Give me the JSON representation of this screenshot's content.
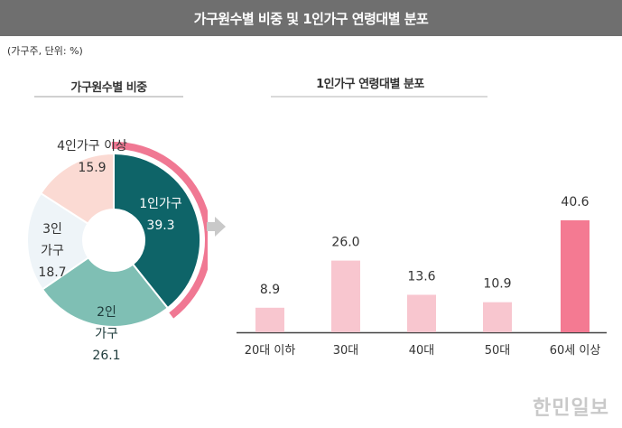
{
  "header": {
    "title": "가구원수별 비중 및 1인가구 연령대별 분포"
  },
  "unit_note": "(가구주, 단위: %)",
  "left_panel": {
    "title": "가구원수별 비중"
  },
  "right_panel": {
    "title": "1인가구 연령대별 분포"
  },
  "watermark": "한민일보",
  "colors": {
    "dark_teal": "#0e6468",
    "mid_teal": "#7fbfb4",
    "light_blue": "#eef4f8",
    "light_pink": "#fbdad3",
    "pink_accent": "#f07893",
    "bar_light": "#f8c6cf",
    "bar_highlight": "#f47a92"
  },
  "chart_data": [
    {
      "type": "pie",
      "title": "가구원수별 비중",
      "slices": [
        {
          "label": "1인가구",
          "value": 39.3,
          "value_label": "39.3"
        },
        {
          "label": "2인 가구",
          "value": 26.1,
          "value_label": "26.1"
        },
        {
          "label": "3인 가구",
          "value": 18.7,
          "value_label": "18.7"
        },
        {
          "label": "4인가구 이상",
          "value": 15.9,
          "value_label": "15.9"
        }
      ]
    },
    {
      "type": "bar",
      "title": "1인가구 연령대별 분포",
      "categories": [
        "20대 이하",
        "30대",
        "40대",
        "50대",
        "60세 이상"
      ],
      "values": [
        8.9,
        26.0,
        13.6,
        10.9,
        40.6
      ],
      "value_labels": [
        "8.9",
        "26.0",
        "13.6",
        "10.9",
        "40.6"
      ],
      "highlight_index": 4,
      "ylim": [
        0,
        40.6
      ]
    }
  ]
}
